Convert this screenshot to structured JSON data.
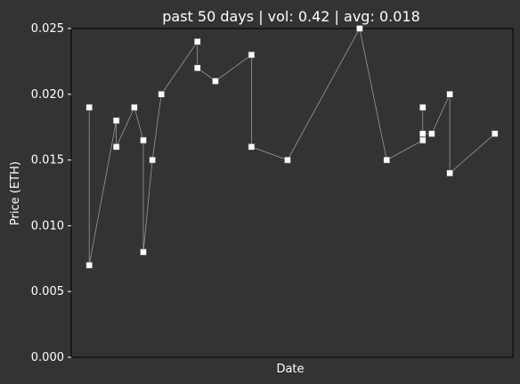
{
  "chart_data": {
    "type": "line",
    "title": "past 50 days | vol: 0.42 | avg: 0.018",
    "xlabel": "Date",
    "ylabel": "Price (ETH)",
    "ylim": [
      0,
      0.025
    ],
    "yticks": [
      "0.000",
      "0.005",
      "0.010",
      "0.015",
      "0.020",
      "0.025"
    ],
    "grid": false,
    "colors": {
      "background": "#333333",
      "line": "#999999",
      "marker_fill": "#ffffff",
      "text": "#ffffff",
      "axis": "#000000"
    },
    "series": [
      {
        "x": [
          2,
          2,
          5,
          5,
          7,
          8,
          8,
          9,
          10,
          14,
          14,
          16,
          20,
          20,
          24,
          32,
          35,
          39,
          39,
          39,
          40,
          42,
          42,
          47
        ],
        "values": [
          0.019,
          0.007,
          0.018,
          0.016,
          0.019,
          0.0165,
          0.008,
          0.015,
          0.02,
          0.024,
          0.022,
          0.021,
          0.023,
          0.016,
          0.015,
          0.025,
          0.015,
          0.0165,
          0.019,
          0.017,
          0.017,
          0.02,
          0.014,
          0.017
        ]
      }
    ]
  }
}
